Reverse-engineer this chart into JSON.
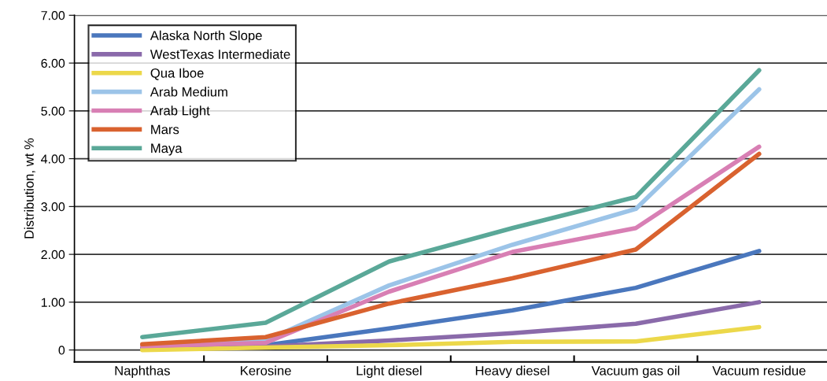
{
  "chart_data": {
    "type": "line",
    "ylabel": "Distribution, wt %",
    "categories": [
      "Naphthas",
      "Kerosine",
      "Light diesel",
      "Heavy diesel",
      "Vacuum gas oil",
      "Vacuum residue"
    ],
    "series": [
      {
        "name": "Alaska North Slope",
        "color": "#4a77bd",
        "values": [
          0.07,
          0.1,
          0.45,
          0.83,
          1.3,
          2.07
        ]
      },
      {
        "name": "WestTexas Intermediate",
        "color": "#8a6aaa",
        "values": [
          0.05,
          0.07,
          0.2,
          0.35,
          0.55,
          1.0
        ]
      },
      {
        "name": "Qua Iboe",
        "color": "#ecd84a",
        "values": [
          0.0,
          0.05,
          0.1,
          0.17,
          0.18,
          0.48
        ]
      },
      {
        "name": "Arab Medium",
        "color": "#9cc4e8",
        "values": [
          0.1,
          0.2,
          1.35,
          2.2,
          2.95,
          5.45
        ]
      },
      {
        "name": "Arab Light",
        "color": "#d87fb4",
        "values": [
          0.08,
          0.15,
          1.22,
          2.05,
          2.55,
          4.25
        ]
      },
      {
        "name": "Mars",
        "color": "#d9622f",
        "values": [
          0.12,
          0.27,
          0.97,
          1.5,
          2.1,
          4.1
        ]
      },
      {
        "name": "Maya",
        "color": "#5aa898",
        "values": [
          0.27,
          0.57,
          1.85,
          2.55,
          3.2,
          5.85
        ]
      }
    ],
    "ylim": [
      -0.25,
      7.0
    ],
    "yticks": [
      {
        "value": 0,
        "label": "0"
      },
      {
        "value": 1,
        "label": "1.00"
      },
      {
        "value": 2,
        "label": "2.00"
      },
      {
        "value": 3,
        "label": "3.00"
      },
      {
        "value": 4,
        "label": "4.00"
      },
      {
        "value": 5,
        "label": "5.00"
      },
      {
        "value": 6,
        "label": "6.00"
      },
      {
        "value": 7,
        "label": "7.00"
      }
    ],
    "grid": "y",
    "legend": "top left",
    "marker": "none",
    "line_style": "solid"
  }
}
